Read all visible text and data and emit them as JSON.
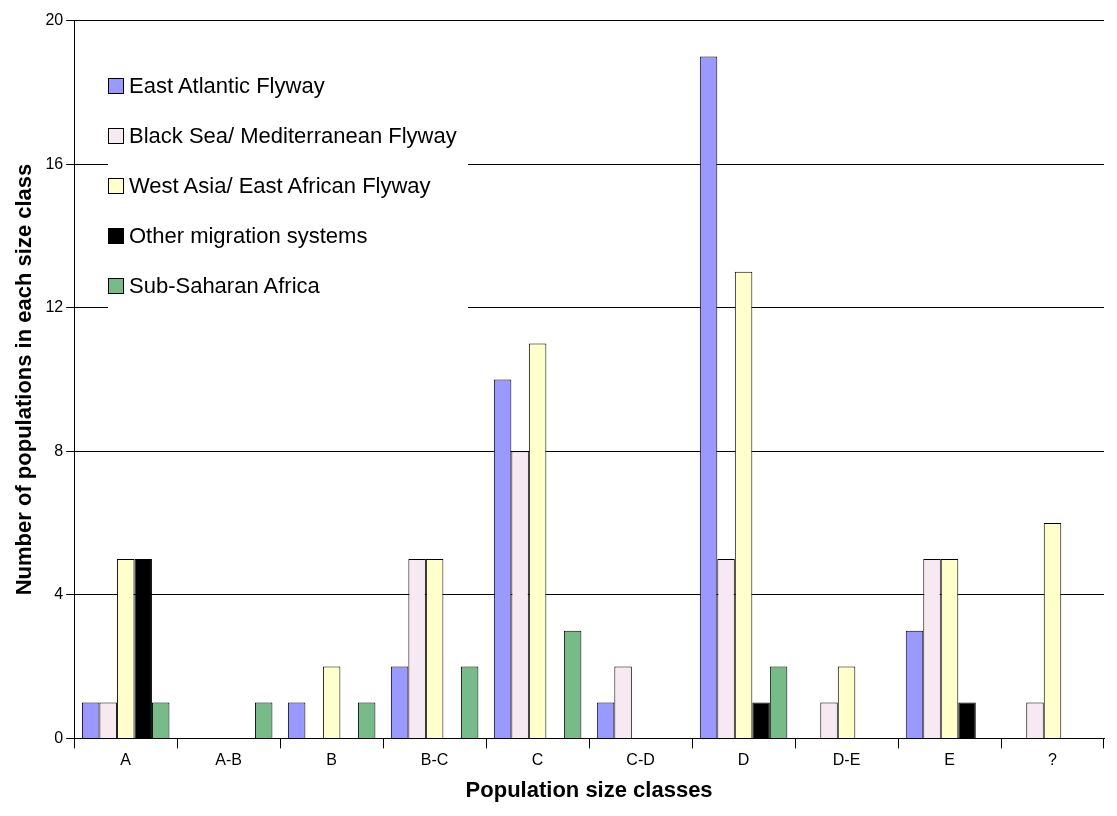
{
  "chart_data": {
    "type": "bar",
    "xlabel": "Population size classes",
    "ylabel": "Number of populations in each size class",
    "categories": [
      "A",
      "A-B",
      "B",
      "B-C",
      "C",
      "C-D",
      "D",
      "D-E",
      "E",
      "?"
    ],
    "series": [
      {
        "name": "East Atlantic Flyway",
        "color": "#9999ff",
        "values": [
          1,
          0,
          1,
          2,
          10,
          1,
          19,
          0,
          3,
          0
        ]
      },
      {
        "name": "Black Sea/ Mediterranean Flyway",
        "color": "#f6e9f1",
        "values": [
          1,
          0,
          0,
          5,
          8,
          2,
          5,
          1,
          5,
          1
        ]
      },
      {
        "name": "West Asia/ East African Flyway",
        "color": "#ffffcc",
        "values": [
          5,
          0,
          2,
          5,
          11,
          0,
          13,
          2,
          5,
          6
        ]
      },
      {
        "name": "Other migration systems",
        "color": "#000000",
        "values": [
          5,
          0,
          0,
          0,
          0,
          0,
          1,
          0,
          1,
          0
        ]
      },
      {
        "name": "Sub-Saharan Africa",
        "color": "#77bb88",
        "values": [
          1,
          1,
          1,
          2,
          3,
          0,
          2,
          0,
          0,
          0
        ]
      }
    ],
    "ylim": [
      0,
      20
    ],
    "yticks": [
      0,
      4,
      8,
      12,
      16,
      20
    ],
    "grid": "y",
    "legend": "top left"
  }
}
